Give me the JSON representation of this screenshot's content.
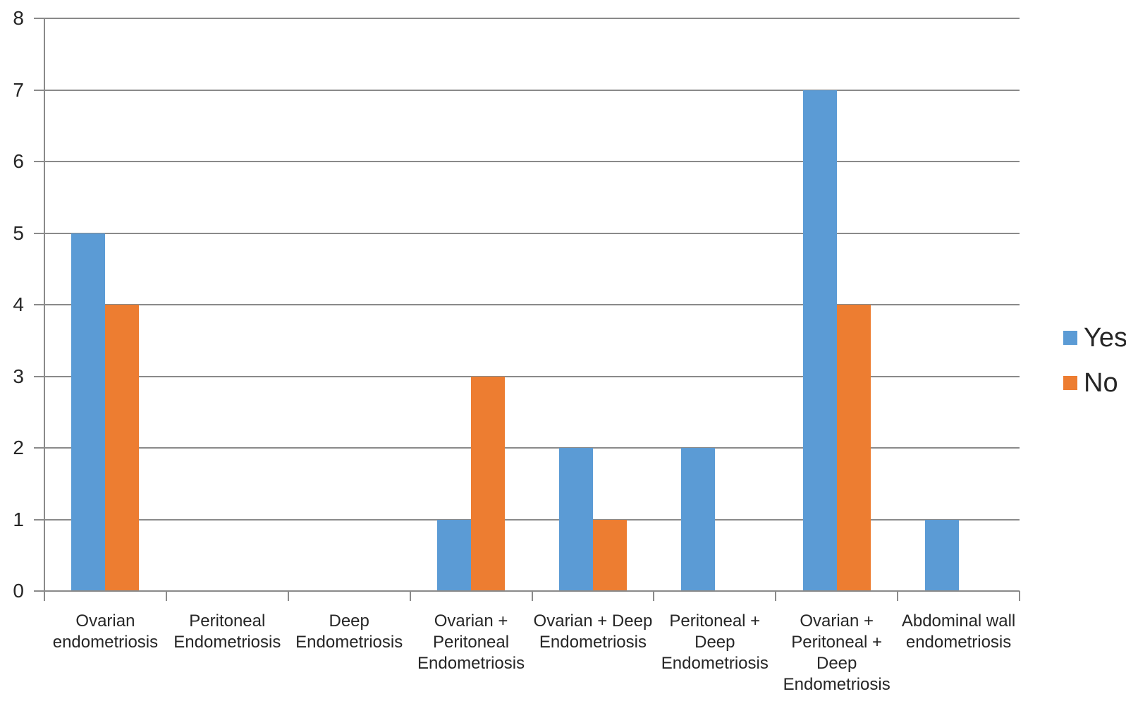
{
  "chart_data": {
    "type": "bar",
    "title": "",
    "xlabel": "",
    "ylabel": "",
    "categories": [
      "Ovarian\nendometriosis",
      "Peritoneal\nEndometriosis",
      "Deep\nEndometriosis",
      "Ovarian +\nPeritoneal\nEndometriosis",
      "Ovarian + Deep\nEndometriosis",
      "Peritoneal +\nDeep\nEndometriosis",
      "Ovarian +\nPeritoneal +\nDeep\nEndometriosis",
      "Abdominal wall\nendometriosis"
    ],
    "series": [
      {
        "name": "Yes",
        "color": "#5B9BD5",
        "values": [
          5,
          0,
          0,
          1,
          2,
          2,
          7,
          1
        ]
      },
      {
        "name": "No",
        "color": "#ED7D31",
        "values": [
          4,
          0,
          0,
          3,
          1,
          0,
          4,
          0
        ]
      }
    ],
    "ylim": [
      0,
      8
    ],
    "yticks": [
      0,
      1,
      2,
      3,
      4,
      5,
      6,
      7,
      8
    ],
    "grid": true,
    "legend_position": "right"
  },
  "colors": {
    "grid": "#8a8a8a",
    "axis": "#8a8a8a",
    "text": "#262626",
    "background": "#ffffff"
  }
}
